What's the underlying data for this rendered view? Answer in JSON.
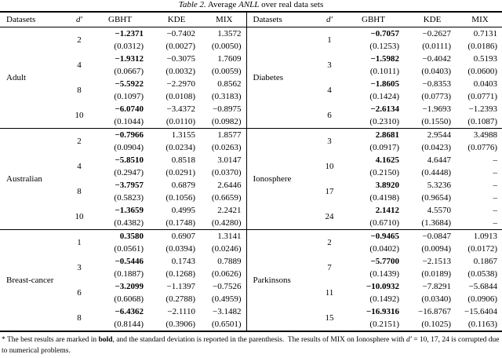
{
  "title": {
    "label": "Table 2.",
    "pre": " Average ",
    "anll": "ANLL",
    "post": " over real data sets"
  },
  "table": {
    "headers": [
      "Datasets",
      "d′",
      "GBHT",
      "KDE",
      "MIX"
    ],
    "left_groups": [
      {
        "dataset": "Adult",
        "rows": [
          {
            "dp": "2",
            "gbht": "−1.2371",
            "gbht_sd": "(0.0312)",
            "kde": "−0.7402",
            "kde_sd": "(0.0027)",
            "mix": "1.3572",
            "mix_sd": "(0.0050)"
          },
          {
            "dp": "4",
            "gbht": "−1.9312",
            "gbht_sd": "(0.0667)",
            "kde": "−0.3075",
            "kde_sd": "(0.0032)",
            "mix": "1.7609",
            "mix_sd": "(0.0059)"
          },
          {
            "dp": "8",
            "gbht": "−5.5922",
            "gbht_sd": "(0.1097)",
            "kde": "−2.2970",
            "kde_sd": "(0.0108)",
            "mix": "0.8562",
            "mix_sd": "(0.3183)"
          },
          {
            "dp": "10",
            "gbht": "−6.0740",
            "gbht_sd": "(0.1044)",
            "kde": "−3.4372",
            "kde_sd": "(0.0110)",
            "mix": "−0.8975",
            "mix_sd": "(0.0982)"
          }
        ]
      },
      {
        "dataset": "Australian",
        "rows": [
          {
            "dp": "2",
            "gbht": "−0.7966",
            "gbht_sd": "(0.0904)",
            "kde": "1.3155",
            "kde_sd": "(0.0234)",
            "mix": "1.8577",
            "mix_sd": "(0.0263)"
          },
          {
            "dp": "4",
            "gbht": "−5.8510",
            "gbht_sd": "(0.2947)",
            "kde": "0.8518",
            "kde_sd": "(0.0291)",
            "mix": "3.0147",
            "mix_sd": "(0.0370)"
          },
          {
            "dp": "8",
            "gbht": "−3.7957",
            "gbht_sd": "(0.5823)",
            "kde": "0.6879",
            "kde_sd": "(0.1056)",
            "mix": "2.6446",
            "mix_sd": "(0.6659)"
          },
          {
            "dp": "10",
            "gbht": "−1.3659",
            "gbht_sd": "(0.4382)",
            "kde": "0.4995",
            "kde_sd": "(0.1748)",
            "mix": "2.2421",
            "mix_sd": "(0.4280)"
          }
        ]
      },
      {
        "dataset": "Breast-cancer",
        "rows": [
          {
            "dp": "1",
            "gbht": "0.3580",
            "gbht_sd": "(0.0561)",
            "kde": "0.6907",
            "kde_sd": "(0.0394)",
            "mix": "1.3141",
            "mix_sd": "(0.0246)"
          },
          {
            "dp": "3",
            "gbht": "−0.5446",
            "gbht_sd": "(0.1887)",
            "kde": "0.1743",
            "kde_sd": "(0.1268)",
            "mix": "0.7889",
            "mix_sd": "(0.0626)"
          },
          {
            "dp": "6",
            "gbht": "−3.2099",
            "gbht_sd": "(0.6068)",
            "kde": "−1.1397",
            "kde_sd": "(0.2788)",
            "mix": "−0.7526",
            "mix_sd": "(0.4959)"
          },
          {
            "dp": "8",
            "gbht": "−6.4362",
            "gbht_sd": "(0.8144)",
            "kde": "−2.1110",
            "kde_sd": "(0.3906)",
            "mix": "−3.1482",
            "mix_sd": "(0.6501)"
          }
        ]
      }
    ],
    "right_groups": [
      {
        "dataset": "Diabetes",
        "rows": [
          {
            "dp": "1",
            "gbht": "−0.7057",
            "gbht_sd": "(0.1253)",
            "kde": "−0.2627",
            "kde_sd": "(0.0111)",
            "mix": "0.7131",
            "mix_sd": "(0.0186)"
          },
          {
            "dp": "3",
            "gbht": "−1.5982",
            "gbht_sd": "(0.1011)",
            "kde": "−0.4042",
            "kde_sd": "(0.0403)",
            "mix": "0.5193",
            "mix_sd": "(0.0600)"
          },
          {
            "dp": "4",
            "gbht": "−1.8605",
            "gbht_sd": "(0.1424)",
            "kde": "−0.8353",
            "kde_sd": "(0.0773)",
            "mix": "0.0403",
            "mix_sd": "(0.0771)"
          },
          {
            "dp": "6",
            "gbht": "−2.6134",
            "gbht_sd": "(0.2310)",
            "kde": "−1.9693",
            "kde_sd": "(0.1550)",
            "mix": "−1.2393",
            "mix_sd": "(0.1087)"
          }
        ]
      },
      {
        "dataset": "Ionosphere",
        "rows": [
          {
            "dp": "3",
            "gbht": "2.8681",
            "gbht_sd": "(0.0917)",
            "kde": "2.9544",
            "kde_sd": "(0.0423)",
            "mix": "3.4988",
            "mix_sd": "(0.0776)"
          },
          {
            "dp": "10",
            "gbht": "4.1625",
            "gbht_sd": "(0.2150)",
            "kde": "4.6447",
            "kde_sd": "(0.4448)",
            "mix": "–",
            "mix_sd": "–"
          },
          {
            "dp": "17",
            "gbht": "3.8920",
            "gbht_sd": "(0.4198)",
            "kde": "5.3236",
            "kde_sd": "(0.9654)",
            "mix": "–",
            "mix_sd": "–"
          },
          {
            "dp": "24",
            "gbht": "2.1412",
            "gbht_sd": "(0.6710)",
            "kde": "4.5570",
            "kde_sd": "(1.3684)",
            "mix": "–",
            "mix_sd": "–"
          }
        ]
      },
      {
        "dataset": "Parkinsons",
        "rows": [
          {
            "dp": "2",
            "gbht": "−0.9465",
            "gbht_sd": "(0.0402)",
            "kde": "−0.0847",
            "kde_sd": "(0.0094)",
            "mix": "1.0913",
            "mix_sd": "(0.0172)"
          },
          {
            "dp": "7",
            "gbht": "−5.7700",
            "gbht_sd": "(0.1439)",
            "kde": "−2.1513",
            "kde_sd": "(0.0189)",
            "mix": "0.1867",
            "mix_sd": "(0.0538)"
          },
          {
            "dp": "11",
            "gbht": "−10.0932",
            "gbht_sd": "(0.1492)",
            "kde": "−7.8291",
            "kde_sd": "(0.0340)",
            "mix": "−5.6844",
            "mix_sd": "(0.0906)"
          },
          {
            "dp": "15",
            "gbht": "−16.9316",
            "gbht_sd": "(0.2151)",
            "kde": "−16.8767",
            "kde_sd": "(0.1025)",
            "mix": "−15.6404",
            "mix_sd": "(0.1163)"
          }
        ]
      }
    ]
  },
  "footnote": {
    "p1": "* The best results are marked in ",
    "bold_word": "bold",
    "p2": ", and the standard deviation is reported in the parenthesis.  The results of MIX on Ionosphere with ",
    "d_sym": "d′",
    "p3": " = 10, 17, 24 is corrupted due to numerical problems."
  }
}
